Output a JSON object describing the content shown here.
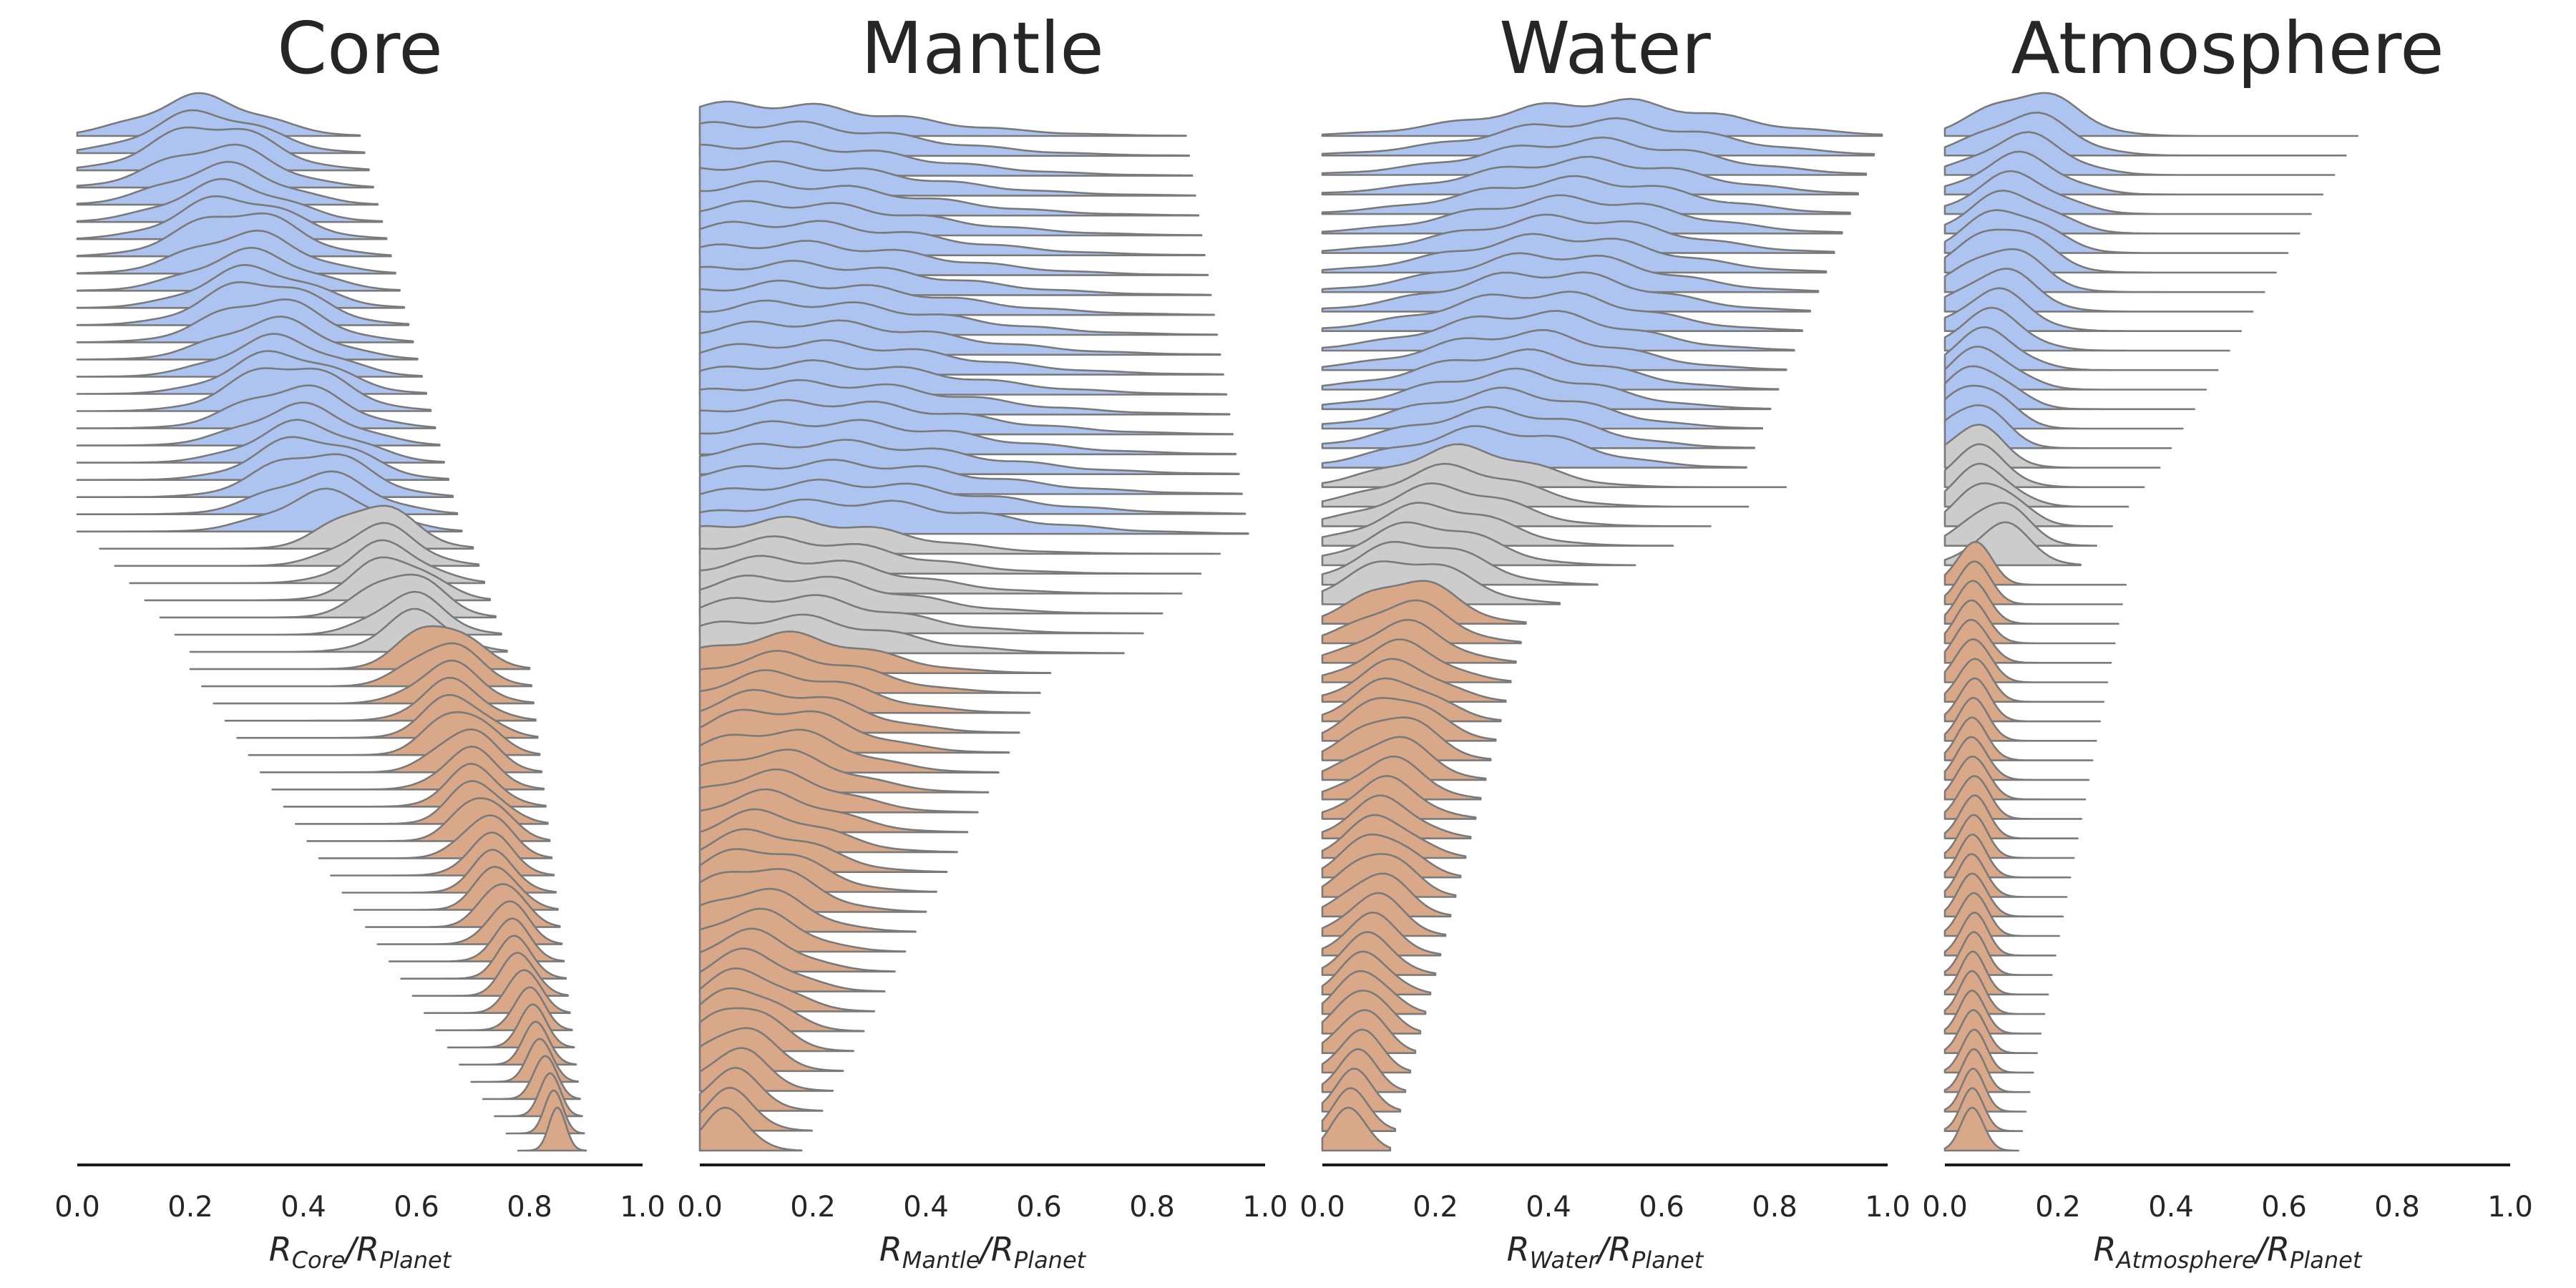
{
  "colors": {
    "planet_group_a": "#aec4f0",
    "planet_group_b": "#cccccc",
    "planet_group_c": "#d9a888",
    "outline": "#7a7a7a",
    "axis": "#1a1a1a"
  },
  "chart_data": [
    {
      "type": "ridgeline",
      "title": "Core",
      "xlabel": {
        "main": "R",
        "sub1": "Core",
        "slash": "/R",
        "sub2": "Planet"
      },
      "xlim": [
        0,
        1
      ],
      "xticks": [
        "0.0",
        "0.2",
        "0.4",
        "0.6",
        "0.8",
        "1.0"
      ],
      "groups": [
        {
          "color": "planet_group_a",
          "count": 24,
          "peak": [
            0.22,
            0.44
          ],
          "range_lo": [
            0.0,
            0.0
          ],
          "range_hi": [
            0.5,
            0.68
          ],
          "width": [
            0.1,
            0.09
          ]
        },
        {
          "color": "planet_group_b",
          "count": 7,
          "peak": [
            0.52,
            0.6
          ],
          "range_lo": [
            0.04,
            0.2
          ],
          "range_hi": [
            0.7,
            0.76
          ],
          "width": [
            0.07,
            0.06
          ]
        },
        {
          "color": "planet_group_c",
          "count": 29,
          "peak": [
            0.64,
            0.85
          ],
          "range_lo": [
            0.2,
            0.78
          ],
          "range_hi": [
            0.8,
            0.9
          ],
          "width": [
            0.06,
            0.015
          ]
        }
      ]
    },
    {
      "type": "ridgeline",
      "title": "Mantle",
      "xlabel": {
        "main": "R",
        "sub1": "Mantle",
        "slash": "/R",
        "sub2": "Planet"
      },
      "xlim": [
        0,
        1
      ],
      "xticks": [
        "0.0",
        "0.2",
        "0.4",
        "0.6",
        "0.8",
        "1.0"
      ],
      "groups": [
        {
          "color": "planet_group_a",
          "count": 21,
          "peak": [
            0.1,
            0.25
          ],
          "range_lo": [
            0.0,
            0.0
          ],
          "range_hi": [
            0.86,
            0.97
          ],
          "width": [
            0.25,
            0.25
          ]
        },
        {
          "color": "planet_group_b",
          "count": 6,
          "peak": [
            0.15,
            0.15
          ],
          "range_lo": [
            0.0,
            0.0
          ],
          "range_hi": [
            0.92,
            0.75
          ],
          "width": [
            0.2,
            0.18
          ]
        },
        {
          "color": "planet_group_c",
          "count": 25,
          "peak": [
            0.15,
            0.05
          ],
          "range_lo": [
            0.0,
            0.0
          ],
          "range_hi": [
            0.62,
            0.18
          ],
          "width": [
            0.15,
            0.04
          ]
        }
      ]
    },
    {
      "type": "ridgeline",
      "title": "Water",
      "xlabel": {
        "main": "R",
        "sub1": "Water",
        "slash": "/R",
        "sub2": "Planet"
      },
      "xlim": [
        0,
        1
      ],
      "xticks": [
        "0.0",
        "0.2",
        "0.4",
        "0.6",
        "0.8",
        "1.0"
      ],
      "groups": [
        {
          "color": "planet_group_a",
          "count": 18,
          "peak": [
            0.5,
            0.3
          ],
          "range_lo": [
            0.0,
            0.0
          ],
          "range_hi": [
            0.99,
            0.75
          ],
          "width": [
            0.2,
            0.15
          ]
        },
        {
          "color": "planet_group_b",
          "count": 7,
          "peak": [
            0.25,
            0.15
          ],
          "range_lo": [
            0.0,
            0.0
          ],
          "range_hi": [
            0.82,
            0.42
          ],
          "width": [
            0.12,
            0.1
          ]
        },
        {
          "color": "planet_group_c",
          "count": 28,
          "peak": [
            0.15,
            0.05
          ],
          "range_lo": [
            0.0,
            0.0
          ],
          "range_hi": [
            0.36,
            0.12
          ],
          "width": [
            0.08,
            0.03
          ]
        }
      ]
    },
    {
      "type": "ridgeline",
      "title": "Atmosphere",
      "xlabel": {
        "main": "R",
        "sub1": "Atmosphere",
        "slash": "/R",
        "sub2": "Planet"
      },
      "xlim": [
        0,
        1
      ],
      "xticks": [
        "0.0",
        "0.2",
        "0.4",
        "0.6",
        "0.8",
        "1.0"
      ],
      "groups": [
        {
          "color": "planet_group_a",
          "count": 17,
          "peak": [
            0.15,
            0.05
          ],
          "range_lo": [
            0.0,
            0.0
          ],
          "range_hi": [
            0.73,
            0.4
          ],
          "width": [
            0.08,
            0.05
          ]
        },
        {
          "color": "planet_group_b",
          "count": 6,
          "peak": [
            0.05,
            0.1
          ],
          "range_lo": [
            0.0,
            0.0
          ],
          "range_hi": [
            0.38,
            0.24
          ],
          "width": [
            0.05,
            0.05
          ]
        },
        {
          "color": "planet_group_c",
          "count": 30,
          "peak": [
            0.05,
            0.05
          ],
          "range_lo": [
            0.0,
            0.0
          ],
          "range_hi": [
            0.32,
            0.13
          ],
          "width": [
            0.03,
            0.02
          ]
        }
      ]
    }
  ]
}
